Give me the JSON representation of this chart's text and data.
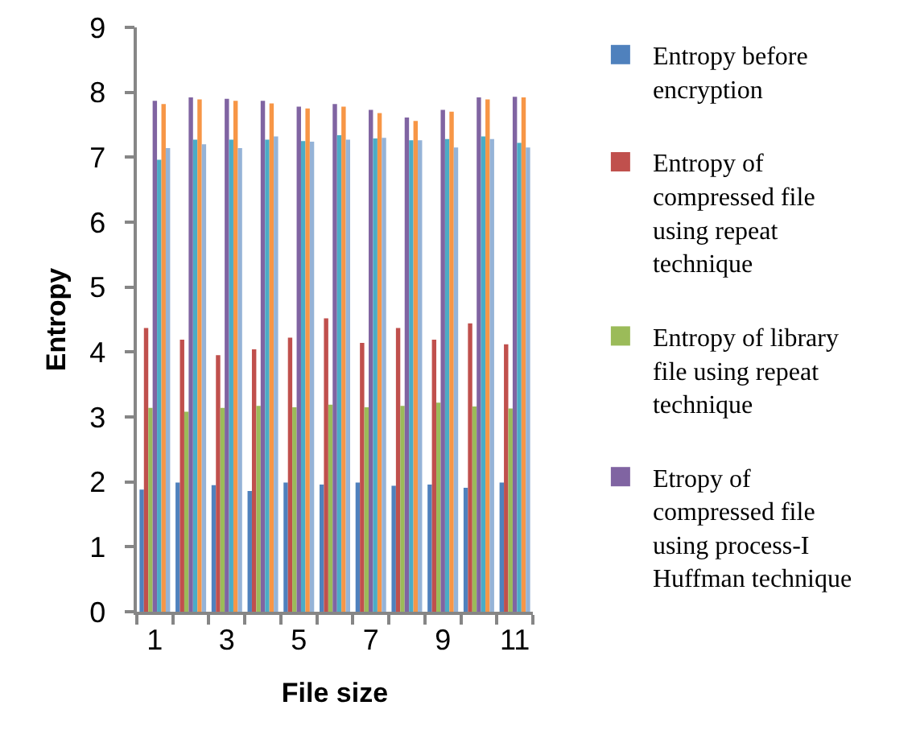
{
  "chart_data": {
    "type": "bar",
    "xlabel": "File size",
    "ylabel": "Entropy",
    "categories": [
      "1",
      null,
      "3",
      null,
      "5",
      null,
      "7",
      null,
      "9",
      null,
      "11"
    ],
    "series": [
      {
        "name": "Entropy before encryption",
        "color": "#4f81bd",
        "values": [
          1.88,
          1.99,
          1.95,
          1.86,
          1.99,
          1.96,
          1.99,
          1.94,
          1.96,
          1.91,
          1.99
        ]
      },
      {
        "name": "Entropy of compressed file using repeat technique",
        "color": "#c0504d",
        "values": [
          4.37,
          4.19,
          3.95,
          4.04,
          4.22,
          4.52,
          4.14,
          4.37,
          4.19,
          4.44,
          4.12
        ]
      },
      {
        "name": "Entropy of library file using repeat technique",
        "color": "#9bbb59",
        "values": [
          3.14,
          3.08,
          3.14,
          3.17,
          3.15,
          3.19,
          3.15,
          3.17,
          3.22,
          3.16,
          3.13
        ]
      },
      {
        "name": "Etropy of compressed file using process-I Huffman technique",
        "color": "#8064a2",
        "values": [
          7.87,
          7.92,
          7.9,
          7.87,
          7.78,
          7.82,
          7.73,
          7.61,
          7.73,
          7.92,
          7.93
        ]
      },
      {
        "color": "#4bacc6",
        "values": [
          6.96,
          7.27,
          7.27,
          7.27,
          7.25,
          7.34,
          7.29,
          7.26,
          7.28,
          7.32,
          7.22
        ]
      },
      {
        "color": "#f79646",
        "values": [
          7.82,
          7.89,
          7.87,
          7.83,
          7.75,
          7.78,
          7.68,
          7.56,
          7.7,
          7.89,
          7.92
        ]
      },
      {
        "color": "#95b3d7",
        "values": [
          7.14,
          7.2,
          7.14,
          7.32,
          7.24,
          7.27,
          7.3,
          7.26,
          7.15,
          7.28,
          7.15
        ]
      }
    ],
    "ylim": [
      0,
      9
    ],
    "yticks": [
      0,
      1,
      2,
      3,
      4,
      5,
      6,
      7,
      8,
      9
    ],
    "grid": false,
    "legend": "right"
  }
}
